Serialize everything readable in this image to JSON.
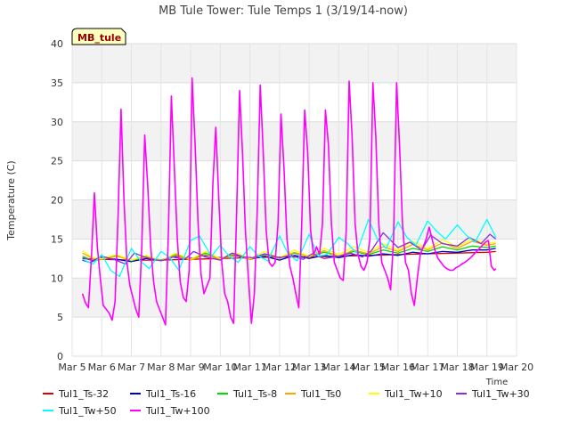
{
  "chart_data": {
    "type": "line",
    "title": "MB Tule Tower: Tule Temps 1 (3/19/14-now)",
    "xlabel": "Time",
    "ylabel": "Temperature (C)",
    "ylim": [
      0,
      40
    ],
    "xlim": [
      5,
      20
    ],
    "yticks": [
      0,
      5,
      10,
      15,
      20,
      25,
      30,
      35,
      40
    ],
    "xticks": [
      {
        "v": 5,
        "label": "Mar 5"
      },
      {
        "v": 6,
        "label": "Mar 6"
      },
      {
        "v": 7,
        "label": "Mar 7"
      },
      {
        "v": 8,
        "label": "Mar 8"
      },
      {
        "v": 9,
        "label": "Mar 9"
      },
      {
        "v": 10,
        "label": "Mar 10"
      },
      {
        "v": 11,
        "label": "Mar 11"
      },
      {
        "v": 12,
        "label": "Mar 12"
      },
      {
        "v": 13,
        "label": "Mar 13"
      },
      {
        "v": 14,
        "label": "Mar 14"
      },
      {
        "v": 15,
        "label": "Mar 15"
      },
      {
        "v": 16,
        "label": "Mar 16"
      },
      {
        "v": 17,
        "label": "Mar 17"
      },
      {
        "v": 18,
        "label": "Mar 18"
      },
      {
        "v": 19,
        "label": "Mar 19"
      },
      {
        "v": 20,
        "label": "Mar 20"
      }
    ],
    "annotation": "MB_tule",
    "grid": true,
    "legend_position": "bottom",
    "series": [
      {
        "name": "Tul1_Ts-32",
        "color": "#dd0000",
        "x": [
          5.35,
          6,
          7,
          8,
          9,
          10,
          11,
          12,
          13,
          14,
          15,
          16,
          17,
          18,
          19,
          19.3
        ],
        "y": [
          12.5,
          12.4,
          12.3,
          12.3,
          12.4,
          12.5,
          12.6,
          12.7,
          12.7,
          12.8,
          12.9,
          13.0,
          13.1,
          13.2,
          13.3,
          13.4
        ]
      },
      {
        "name": "Tul1_Ts-16",
        "color": "#0000cc",
        "x": [
          5.35,
          5.6,
          6,
          6.5,
          7,
          7.5,
          8,
          8.5,
          9,
          9.5,
          10,
          10.5,
          11,
          11.5,
          12,
          12.5,
          13,
          13.5,
          14,
          14.5,
          15,
          15.5,
          16,
          16.5,
          17,
          17.5,
          18,
          18.5,
          19,
          19.3
        ],
        "y": [
          12.3,
          12.0,
          12.6,
          12.4,
          12.1,
          12.5,
          12.3,
          12.8,
          12.5,
          12.9,
          12.6,
          12.9,
          12.4,
          12.8,
          12.3,
          12.9,
          12.5,
          12.9,
          12.6,
          13.0,
          12.8,
          13.1,
          12.9,
          13.3,
          13.1,
          13.4,
          13.3,
          13.6,
          13.6,
          13.8
        ]
      },
      {
        "name": "Tul1_Ts-8",
        "color": "#00dd00",
        "x": [
          5.35,
          5.7,
          6,
          6.5,
          7,
          7.5,
          8,
          8.5,
          9,
          9.5,
          10,
          10.5,
          11,
          11.5,
          12,
          12.5,
          13,
          13.5,
          14,
          14.5,
          15,
          15.5,
          16,
          16.5,
          17,
          17.5,
          18,
          18.5,
          19,
          19.3
        ],
        "y": [
          12.8,
          12.2,
          12.4,
          12.9,
          12.2,
          12.8,
          12.3,
          13.0,
          12.4,
          13.2,
          12.5,
          13.1,
          12.4,
          13.0,
          12.5,
          13.2,
          12.7,
          13.3,
          12.8,
          13.4,
          13.0,
          13.6,
          13.2,
          13.8,
          13.4,
          14.0,
          13.6,
          14.1,
          13.9,
          14.1
        ]
      },
      {
        "name": "Tul1_Ts0",
        "color": "#ffa500",
        "x": [
          5.35,
          5.7,
          6,
          6.5,
          7,
          7.5,
          8,
          8.5,
          9,
          9.5,
          10,
          10.5,
          11,
          11.5,
          12,
          12.5,
          13,
          13.5,
          14,
          14.5,
          15,
          15.5,
          16,
          16.5,
          17,
          17.5,
          18,
          18.5,
          19,
          19.3
        ],
        "y": [
          13.2,
          12.5,
          12.4,
          12.8,
          12.3,
          12.7,
          12.2,
          12.9,
          12.3,
          13.0,
          12.4,
          13.0,
          12.4,
          13.1,
          12.5,
          13.3,
          12.7,
          13.5,
          12.8,
          13.6,
          13.1,
          14.0,
          13.4,
          14.3,
          13.6,
          14.5,
          13.8,
          14.7,
          14.2,
          14.4
        ]
      },
      {
        "name": "Tul1_Tw+10",
        "color": "#ffff00",
        "x": [
          5.35,
          5.7,
          6,
          6.5,
          7,
          7.5,
          8,
          8.5,
          9,
          9.5,
          10,
          10.5,
          11,
          11.5,
          12,
          12.5,
          13,
          13.5,
          14,
          14.5,
          15,
          15.5,
          16,
          16.5,
          17,
          17.5,
          18,
          18.5,
          19,
          19.3
        ],
        "y": [
          13.5,
          12.6,
          12.5,
          13.0,
          12.3,
          12.9,
          12.2,
          13.2,
          12.4,
          13.4,
          12.5,
          13.3,
          12.5,
          13.4,
          12.6,
          13.6,
          12.8,
          13.8,
          13.0,
          14.0,
          13.3,
          14.4,
          13.6,
          14.7,
          13.8,
          14.9,
          14.0,
          15.0,
          14.4,
          14.6
        ]
      },
      {
        "name": "Tul1_Tw+30",
        "color": "#8a2be2",
        "x": [
          5.35,
          5.7,
          6,
          6.4,
          6.8,
          7.1,
          7.5,
          8,
          8.4,
          8.8,
          9.1,
          9.5,
          10,
          10.4,
          10.8,
          11.1,
          11.5,
          12,
          12.4,
          12.8,
          13.1,
          13.5,
          14,
          14.4,
          14.8,
          15.1,
          15.5,
          16,
          16.4,
          16.8,
          17.1,
          17.5,
          18,
          18.4,
          18.8,
          19.1,
          19.3
        ],
        "y": [
          12.6,
          12.2,
          12.8,
          12.4,
          11.8,
          13.2,
          12.6,
          12.2,
          12.7,
          12.4,
          13.4,
          12.7,
          12.3,
          13.2,
          12.7,
          12.6,
          13.1,
          12.6,
          12.9,
          12.4,
          13.1,
          12.5,
          12.8,
          13.2,
          12.7,
          13.5,
          15.8,
          13.9,
          14.6,
          13.6,
          15.5,
          14.4,
          14.1,
          15.2,
          14.4,
          15.6,
          15.0
        ]
      },
      {
        "name": "Tul1_Tw+50",
        "color": "#00ffff",
        "x": [
          5.35,
          5.7,
          6,
          6.3,
          6.6,
          7,
          7.3,
          7.6,
          8,
          8.3,
          8.6,
          9,
          9.3,
          9.7,
          10,
          10.3,
          10.6,
          11,
          11.3,
          11.6,
          12,
          12.3,
          12.6,
          13,
          13.3,
          13.6,
          14,
          14.3,
          14.6,
          15,
          15.3,
          15.6,
          16,
          16.3,
          16.6,
          17,
          17.3,
          17.6,
          18,
          18.3,
          18.6,
          19,
          19.3
        ],
        "y": [
          12.4,
          11.8,
          13.0,
          11.0,
          10.2,
          13.8,
          12.2,
          11.2,
          13.4,
          12.6,
          11.0,
          14.8,
          15.4,
          12.8,
          14.2,
          12.8,
          12.0,
          14.0,
          12.8,
          12.2,
          15.4,
          13.0,
          12.2,
          15.6,
          12.8,
          13.0,
          15.2,
          14.4,
          13.2,
          17.5,
          15.0,
          13.8,
          17.2,
          15.2,
          14.2,
          17.3,
          16.0,
          15.0,
          16.8,
          15.5,
          14.6,
          17.5,
          15.2
        ]
      },
      {
        "name": "Tul1_Tw+100",
        "color": "#ff00ff",
        "x": [
          5.35,
          5.45,
          5.55,
          5.65,
          5.75,
          5.85,
          5.95,
          6.05,
          6.15,
          6.25,
          6.35,
          6.45,
          6.55,
          6.65,
          6.75,
          6.85,
          6.95,
          7.05,
          7.15,
          7.25,
          7.35,
          7.45,
          7.55,
          7.65,
          7.75,
          7.85,
          7.95,
          8.05,
          8.15,
          8.25,
          8.35,
          8.45,
          8.55,
          8.65,
          8.75,
          8.85,
          8.95,
          9.05,
          9.15,
          9.25,
          9.35,
          9.45,
          9.55,
          9.65,
          9.75,
          9.85,
          9.95,
          10.05,
          10.15,
          10.25,
          10.35,
          10.45,
          10.55,
          10.65,
          10.75,
          10.85,
          10.95,
          11.05,
          11.15,
          11.25,
          11.35,
          11.45,
          11.55,
          11.65,
          11.75,
          11.85,
          11.95,
          12.05,
          12.15,
          12.25,
          12.35,
          12.45,
          12.55,
          12.65,
          12.75,
          12.85,
          12.95,
          13.05,
          13.15,
          13.25,
          13.35,
          13.45,
          13.55,
          13.65,
          13.75,
          13.85,
          13.95,
          14.05,
          14.15,
          14.25,
          14.35,
          14.45,
          14.55,
          14.65,
          14.75,
          14.85,
          14.95,
          15.05,
          15.15,
          15.25,
          15.35,
          15.45,
          15.55,
          15.65,
          15.75,
          15.85,
          15.95,
          16.05,
          16.15,
          16.25,
          16.35,
          16.45,
          16.55,
          16.65,
          16.75,
          16.85,
          16.95,
          17.05,
          17.15,
          17.25,
          17.35,
          17.45,
          17.55,
          17.65,
          17.75,
          17.85,
          17.95,
          18.05,
          18.15,
          18.25,
          18.35,
          18.45,
          18.55,
          18.65,
          18.75,
          18.85,
          18.95,
          19.05,
          19.15,
          19.25,
          19.3
        ],
        "y": [
          8.0,
          6.8,
          6.2,
          12.5,
          20.9,
          14.0,
          10.0,
          6.5,
          6.0,
          5.5,
          4.6,
          7.0,
          18.0,
          31.6,
          20.0,
          12.0,
          9.0,
          7.5,
          6.0,
          5.0,
          14.0,
          28.3,
          22.0,
          14.0,
          9.5,
          7.0,
          6.0,
          5.0,
          4.0,
          16.0,
          33.3,
          24.0,
          15.0,
          9.5,
          7.5,
          7.0,
          11.0,
          35.6,
          27.0,
          17.0,
          10.5,
          8.0,
          9.0,
          10.0,
          22.0,
          29.3,
          20.0,
          12.0,
          8.0,
          7.0,
          5.0,
          4.2,
          18.0,
          34.0,
          26.0,
          16.0,
          10.0,
          4.2,
          8.0,
          19.0,
          34.7,
          26.0,
          16.0,
          12.0,
          11.5,
          12.0,
          17.0,
          31.0,
          24.0,
          15.0,
          11.5,
          10.0,
          8.0,
          6.2,
          17.0,
          31.5,
          26.0,
          16.0,
          13.0,
          14.0,
          13.0,
          17.0,
          31.5,
          27.0,
          17.0,
          12.0,
          11.0,
          10.0,
          9.7,
          16.0,
          35.2,
          28.0,
          17.0,
          13.0,
          11.5,
          11.0,
          12.0,
          15.0,
          35.0,
          28.0,
          17.0,
          12.0,
          11.0,
          10.0,
          8.5,
          15.0,
          35.0,
          27.0,
          17.0,
          12.0,
          11.0,
          8.0,
          6.5,
          10.0,
          13.0,
          14.0,
          15.0,
          16.5,
          15.0,
          13.5,
          12.5,
          12.0,
          11.5,
          11.2,
          11.0,
          11.0,
          11.3,
          11.5,
          11.8,
          12.0,
          12.3,
          12.6,
          13.0,
          13.4,
          13.8,
          14.2,
          14.6,
          14.8,
          11.5,
          11.0,
          11.2
        ]
      }
    ]
  }
}
